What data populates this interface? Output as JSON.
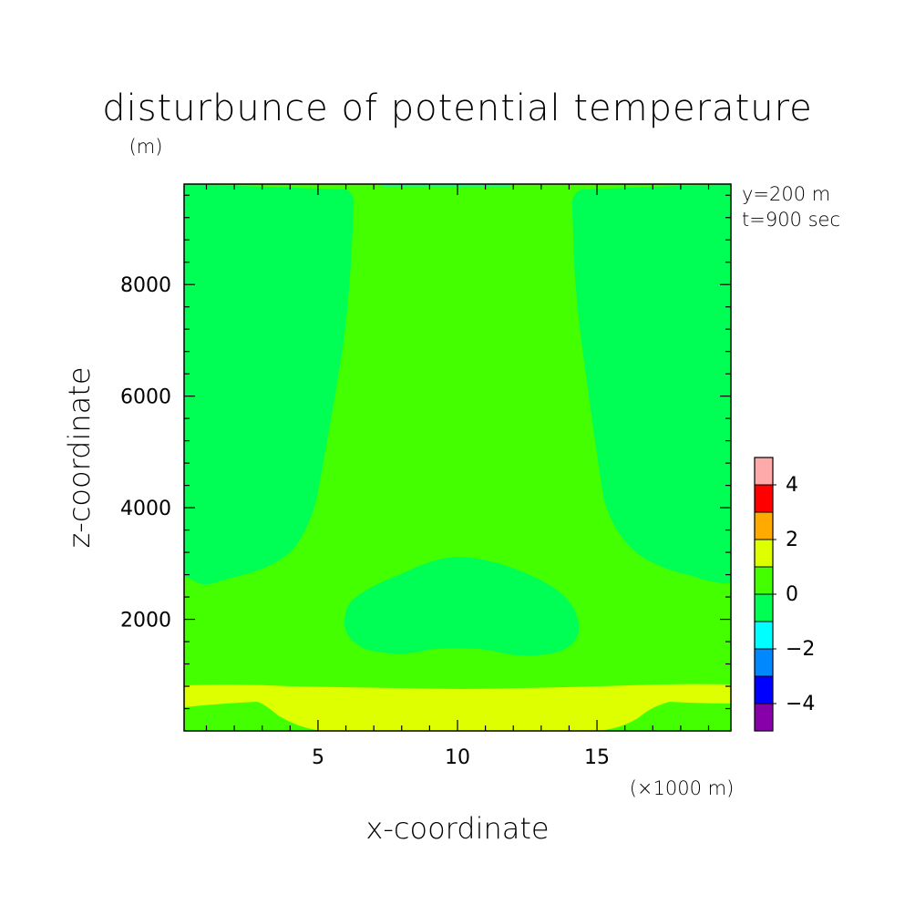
{
  "chart_data": {
    "type": "contour",
    "title": "disturbunce of potential temperature",
    "units_label": "(m)",
    "xlabel": "x-coordinate",
    "ylabel": "z-coordinate",
    "x_multiplier_label": "(×1000 m)",
    "annotations": [
      "y=200 m",
      "t=900 sec"
    ],
    "xlim": [
      0.2,
      19.8
    ],
    "ylim": [
      0,
      9800
    ],
    "x_ticks": [
      5,
      10,
      15
    ],
    "y_ticks": [
      2000,
      4000,
      6000,
      8000
    ],
    "colorbar": {
      "levels": [
        -5,
        -4,
        -3,
        -2,
        -1,
        0,
        1,
        2,
        3,
        4,
        5
      ],
      "labels": [
        4,
        2,
        0,
        -2,
        -4
      ],
      "colors": [
        "#8800aa",
        "#0000ff",
        "#0088ff",
        "#00ffff",
        "#00ff55",
        "#44ff00",
        "#ddff00",
        "#ffaa00",
        "#ff0000",
        "#ffaaaa"
      ]
    },
    "regions": [
      {
        "name": "background",
        "range": "0 to 1",
        "color": "#44ff00"
      },
      {
        "name": "upper-left-negative",
        "range": "-1 to 0",
        "color": "#00ff55"
      },
      {
        "name": "upper-right-negative",
        "range": "-1 to 0",
        "color": "#00ff55"
      },
      {
        "name": "central-negative-blob",
        "range": "-1 to 0",
        "color": "#00ff55"
      },
      {
        "name": "lower-warm-band",
        "range": "1 to 2",
        "color": "#ddff00"
      }
    ]
  }
}
